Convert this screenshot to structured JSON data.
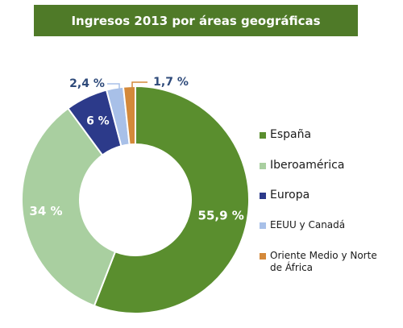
{
  "colors": {
    "title_bg": "#4f7a28",
    "espana": "#5a8e2e",
    "iberoamerica": "#a9cfa0",
    "europa": "#2c3a8a",
    "eeuu": "#a8c0e8",
    "oriente": "#d4893a",
    "label_dark": "#2e4a7a"
  },
  "chart_data": {
    "type": "pie",
    "title": "Ingresos 2013 por áreas geográficas",
    "legend_position": "right",
    "donut": true,
    "slices": [
      {
        "name": "España",
        "value": 55.9,
        "label": "55,9 %"
      },
      {
        "name": "Iberoamérica",
        "value": 34,
        "label": "34 %"
      },
      {
        "name": "Europa",
        "value": 6,
        "label": "6 %"
      },
      {
        "name": "EEUU y Canadá",
        "value": 2.4,
        "label": "2,4 %"
      },
      {
        "name": "Oriente Medio y Norte de África",
        "value": 1.7,
        "label": "1,7 %"
      }
    ]
  }
}
